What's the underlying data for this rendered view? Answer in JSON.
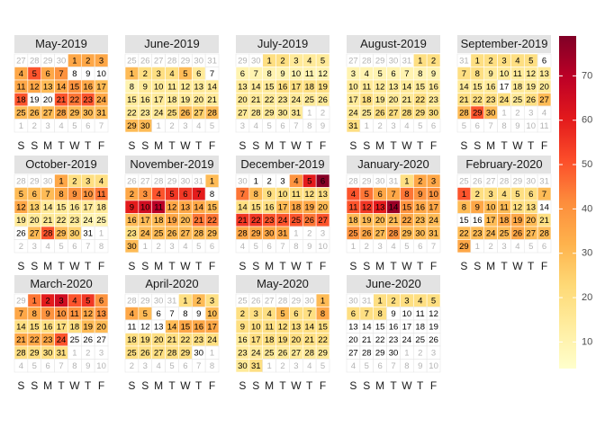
{
  "chart_data": {
    "type": "calendar-heatmap",
    "weekdays": [
      "S",
      "S",
      "M",
      "T",
      "W",
      "T",
      "F"
    ],
    "palette": [
      "#ffffcc",
      "#ffeda0",
      "#fed976",
      "#feb24c",
      "#fd8d3c",
      "#fc4e2a",
      "#e31a1c",
      "#bd0026",
      "#800026"
    ],
    "colorbar": {
      "lim": [
        4,
        79
      ],
      "ticks": [
        10,
        20,
        30,
        40,
        50,
        60,
        70
      ]
    },
    "panels": [
      {
        "title": "May-2019",
        "lead": [
          27,
          28,
          29,
          30
        ],
        "days": [
          1,
          2,
          3,
          4,
          5,
          6,
          7,
          8,
          9,
          10,
          11,
          12,
          13,
          14,
          15,
          16,
          17,
          18,
          19,
          20,
          21,
          22,
          23,
          24,
          25,
          26,
          27,
          28,
          29,
          30,
          31
        ],
        "trail": [
          1,
          2,
          3,
          4,
          5,
          6,
          7
        ],
        "values": [
          35,
          35,
          35,
          35,
          50,
          35,
          40,
          null,
          null,
          null,
          35,
          35,
          30,
          35,
          40,
          35,
          30,
          50,
          null,
          null,
          50,
          45,
          50,
          35,
          30,
          30,
          30,
          35,
          30,
          30,
          30
        ]
      },
      {
        "title": "June-2019",
        "lead": [
          25,
          26,
          27,
          28,
          29,
          30,
          31
        ],
        "days": [
          1,
          2,
          3,
          4,
          5,
          6,
          7,
          8,
          9,
          10,
          11,
          12,
          13,
          14,
          15,
          16,
          17,
          18,
          19,
          20,
          21,
          22,
          23,
          24,
          25,
          26,
          27,
          28,
          29,
          30
        ],
        "trail": [
          1,
          2,
          3,
          4,
          5
        ],
        "values": [
          30,
          20,
          20,
          20,
          30,
          15,
          null,
          10,
          15,
          15,
          15,
          15,
          15,
          15,
          15,
          15,
          15,
          15,
          15,
          15,
          15,
          15,
          15,
          15,
          20,
          30,
          25,
          30,
          30,
          30
        ]
      },
      {
        "title": "July-2019",
        "lead": [
          29,
          30
        ],
        "days": [
          1,
          2,
          3,
          4,
          5,
          6,
          7,
          8,
          9,
          10,
          11,
          12,
          13,
          14,
          15,
          16,
          17,
          18,
          19,
          20,
          21,
          22,
          23,
          24,
          25,
          26,
          27,
          28,
          29,
          30,
          31
        ],
        "trail": [
          1,
          2,
          3,
          4,
          5,
          6,
          7,
          8,
          9
        ],
        "values": [
          20,
          20,
          15,
          15,
          15,
          10,
          10,
          10,
          10,
          10,
          10,
          10,
          15,
          15,
          15,
          20,
          20,
          20,
          20,
          15,
          15,
          15,
          15,
          15,
          15,
          15,
          15,
          15,
          15,
          15,
          15
        ]
      },
      {
        "title": "August-2019",
        "lead": [
          27,
          28,
          29,
          30,
          31
        ],
        "days": [
          1,
          2,
          3,
          4,
          5,
          6,
          7,
          8,
          9,
          10,
          11,
          12,
          13,
          14,
          15,
          16,
          17,
          18,
          19,
          20,
          21,
          22,
          23,
          24,
          25,
          26,
          27,
          28,
          29,
          30,
          31
        ],
        "trail": [
          1,
          2,
          3,
          4,
          5,
          6
        ],
        "values": [
          20,
          20,
          10,
          10,
          10,
          10,
          10,
          10,
          10,
          15,
          15,
          15,
          15,
          15,
          15,
          15,
          15,
          20,
          15,
          15,
          15,
          20,
          15,
          15,
          15,
          20,
          20,
          20,
          20,
          20,
          20
        ]
      },
      {
        "title": "September-2019",
        "lead": [
          31
        ],
        "days": [
          1,
          2,
          3,
          4,
          5,
          6,
          7,
          8,
          9,
          10,
          11,
          12,
          13,
          14,
          15,
          16,
          17,
          18,
          19,
          20,
          21,
          22,
          23,
          24,
          25,
          26,
          27,
          28,
          29,
          30
        ],
        "trail": [
          1,
          2,
          3,
          4,
          5,
          6,
          7,
          8,
          9,
          10,
          11
        ],
        "values": [
          20,
          20,
          20,
          20,
          20,
          null,
          20,
          20,
          15,
          15,
          15,
          15,
          15,
          15,
          15,
          15,
          null,
          15,
          15,
          15,
          20,
          20,
          20,
          20,
          15,
          20,
          30,
          30,
          50,
          30
        ]
      },
      {
        "title": "October-2019",
        "lead": [
          28,
          29,
          30
        ],
        "days": [
          1,
          2,
          3,
          4,
          5,
          6,
          7,
          8,
          9,
          10,
          11,
          12,
          13,
          14,
          15,
          16,
          17,
          18,
          19,
          20,
          21,
          22,
          23,
          24,
          25,
          26,
          27,
          28,
          29,
          30,
          31
        ],
        "trail": [
          1,
          2,
          3,
          4,
          5,
          6,
          7,
          8
        ],
        "values": [
          35,
          20,
          20,
          20,
          30,
          30,
          30,
          35,
          40,
          40,
          45,
          35,
          25,
          15,
          15,
          15,
          15,
          15,
          15,
          15,
          15,
          15,
          15,
          10,
          10,
          null,
          30,
          50,
          30,
          25,
          null
        ]
      },
      {
        "title": "November-2019",
        "lead": [
          26,
          27,
          28,
          29,
          30,
          31
        ],
        "days": [
          1,
          2,
          3,
          4,
          5,
          6,
          7,
          8,
          9,
          10,
          11,
          12,
          13,
          14,
          15,
          16,
          17,
          18,
          19,
          20,
          21,
          22,
          23,
          24,
          25,
          26,
          27,
          28,
          29,
          30
        ],
        "trail": [
          1,
          2,
          3,
          4,
          5,
          6
        ],
        "values": [
          30,
          35,
          40,
          50,
          55,
          55,
          60,
          null,
          60,
          65,
          70,
          35,
          35,
          35,
          30,
          30,
          30,
          30,
          35,
          30,
          45,
          45,
          20,
          30,
          30,
          30,
          30,
          30,
          30,
          30
        ]
      },
      {
        "title": "December-2019",
        "lead": [
          30
        ],
        "days": [
          1,
          2,
          3,
          4,
          5,
          6,
          7,
          8,
          9,
          10,
          11,
          12,
          13,
          14,
          15,
          16,
          17,
          18,
          19,
          20,
          21,
          22,
          23,
          24,
          25,
          26,
          27,
          28,
          29,
          30,
          31
        ],
        "trail": [
          1,
          2,
          3,
          4,
          5,
          6,
          7,
          8,
          9,
          10
        ],
        "values": [
          null,
          null,
          null,
          40,
          60,
          78,
          45,
          30,
          20,
          20,
          20,
          20,
          20,
          20,
          20,
          20,
          30,
          35,
          35,
          30,
          55,
          55,
          50,
          50,
          50,
          45,
          50,
          35,
          35,
          35,
          35
        ]
      },
      {
        "title": "January-2020",
        "lead": [
          28,
          29,
          30,
          31
        ],
        "days": [
          1,
          2,
          3,
          4,
          5,
          6,
          7,
          8,
          9,
          10,
          11,
          12,
          13,
          14,
          15,
          16,
          17,
          18,
          19,
          20,
          21,
          22,
          23,
          24,
          25,
          26,
          27,
          28,
          29,
          30,
          31
        ],
        "trail": [
          1,
          2,
          3,
          4,
          5,
          6,
          7
        ],
        "values": [
          20,
          35,
          35,
          50,
          45,
          35,
          35,
          45,
          40,
          40,
          50,
          55,
          60,
          75,
          40,
          35,
          35,
          30,
          30,
          30,
          30,
          35,
          30,
          30,
          40,
          35,
          30,
          40,
          30,
          30,
          30
        ]
      },
      {
        "title": "February-2020",
        "lead": [
          25,
          26,
          27,
          28,
          29,
          30,
          31
        ],
        "days": [
          1,
          2,
          3,
          4,
          5,
          6,
          7,
          8,
          9,
          10,
          11,
          12,
          13,
          14,
          15,
          16,
          17,
          18,
          19,
          20,
          21,
          22,
          23,
          24,
          25,
          26,
          27,
          28,
          29
        ],
        "trail": [
          1,
          2,
          3,
          4,
          5,
          6
        ],
        "values": [
          50,
          20,
          20,
          20,
          20,
          20,
          30,
          30,
          35,
          30,
          30,
          20,
          20,
          null,
          null,
          null,
          30,
          35,
          35,
          30,
          20,
          30,
          30,
          30,
          30,
          35,
          30,
          30,
          35
        ]
      },
      {
        "title": "March-2020",
        "lead": [
          29
        ],
        "days": [
          1,
          2,
          3,
          4,
          5,
          6,
          7,
          8,
          9,
          10,
          11,
          12,
          13,
          14,
          15,
          16,
          17,
          18,
          19,
          20,
          21,
          22,
          23,
          24,
          25,
          26,
          27,
          28,
          29,
          30,
          31
        ],
        "trail": [
          1,
          2,
          3,
          4,
          5,
          6,
          7,
          8,
          9,
          10
        ],
        "values": [
          45,
          60,
          65,
          50,
          55,
          40,
          35,
          35,
          40,
          40,
          40,
          35,
          40,
          20,
          20,
          20,
          20,
          20,
          30,
          30,
          35,
          35,
          35,
          50,
          null,
          null,
          null,
          20,
          20,
          20,
          20
        ]
      },
      {
        "title": "April-2020",
        "lead": [
          28,
          29,
          30,
          31
        ],
        "days": [
          1,
          2,
          3,
          4,
          5,
          6,
          7,
          8,
          9,
          10,
          11,
          12,
          13,
          14,
          15,
          16,
          17,
          18,
          19,
          20,
          21,
          22,
          23,
          24,
          25,
          26,
          27,
          28,
          29,
          30
        ],
        "trail": [
          1,
          2,
          3,
          4,
          5,
          6,
          7,
          8
        ],
        "values": [
          20,
          30,
          20,
          35,
          30,
          null,
          null,
          null,
          null,
          30,
          null,
          null,
          null,
          30,
          35,
          35,
          35,
          20,
          20,
          20,
          20,
          20,
          20,
          20,
          20,
          20,
          20,
          20,
          20,
          null
        ]
      },
      {
        "title": "May-2020",
        "lead": [
          25,
          26,
          27,
          28,
          29,
          30
        ],
        "days": [
          1,
          2,
          3,
          4,
          5,
          6,
          7,
          8,
          9,
          10,
          11,
          12,
          13,
          14,
          15,
          16,
          17,
          18,
          19,
          20,
          21,
          22,
          23,
          24,
          25,
          26,
          27,
          28,
          29,
          30,
          31
        ],
        "trail": [
          1,
          2,
          3,
          4,
          5
        ],
        "values": [
          30,
          20,
          20,
          20,
          30,
          20,
          20,
          35,
          20,
          20,
          20,
          20,
          20,
          20,
          20,
          15,
          20,
          20,
          20,
          20,
          20,
          20,
          15,
          15,
          15,
          15,
          15,
          15,
          15,
          15,
          20
        ]
      },
      {
        "title": "June-2020",
        "lead": [
          30,
          31
        ],
        "days": [
          1,
          2,
          3,
          4,
          5,
          6,
          7,
          8,
          9,
          10,
          11,
          12,
          13,
          14,
          15,
          16,
          17,
          18,
          19,
          20,
          21,
          22,
          23,
          24,
          25,
          26,
          27,
          28,
          29,
          30
        ],
        "trail": [
          1,
          2,
          3,
          4,
          5,
          6,
          7,
          8,
          9,
          10
        ],
        "values": [
          20,
          20,
          20,
          20,
          20,
          20,
          20,
          20,
          null,
          null,
          null,
          null,
          null,
          null,
          null,
          null,
          null,
          null,
          null,
          null,
          null,
          null,
          null,
          null,
          null,
          null,
          null,
          null,
          null,
          null
        ]
      }
    ]
  }
}
